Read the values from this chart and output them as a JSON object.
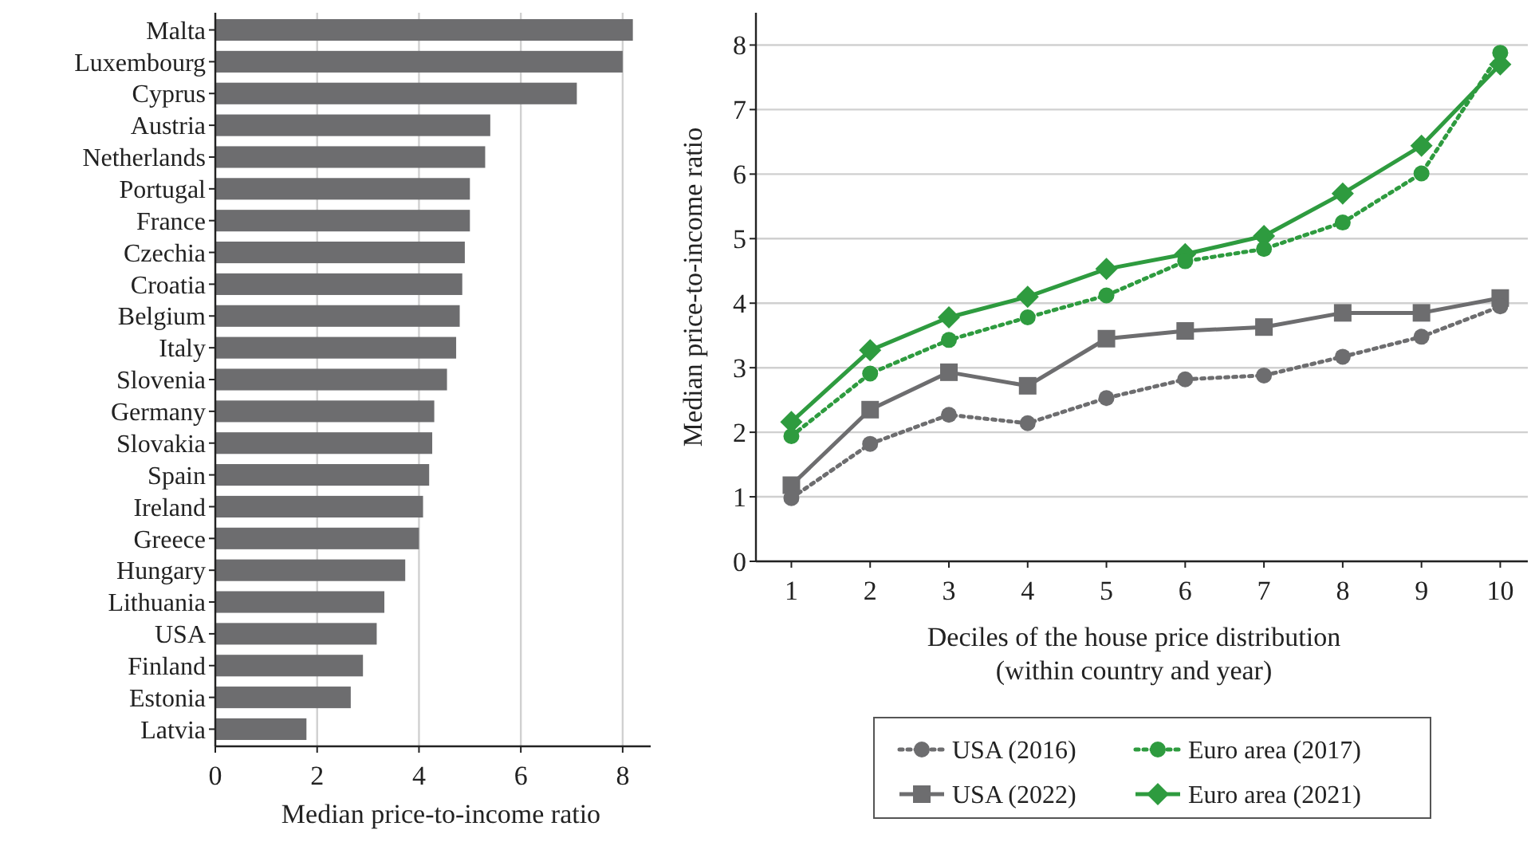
{
  "chart_data": [
    {
      "type": "bar",
      "orientation": "horizontal",
      "xlabel": "Median price-to-income ratio",
      "categories": [
        "Malta",
        "Luxembourg",
        "Cyprus",
        "Austria",
        "Netherlands",
        "Portugal",
        "France",
        "Czechia",
        "Croatia",
        "Belgium",
        "Italy",
        "Slovenia",
        "Germany",
        "Slovakia",
        "Spain",
        "Ireland",
        "Greece",
        "Hungary",
        "Lithuania",
        "USA",
        "Finland",
        "Estonia",
        "Latvia"
      ],
      "values": [
        8.2,
        8.0,
        7.1,
        5.4,
        5.3,
        5.0,
        5.0,
        4.9,
        4.85,
        4.8,
        4.73,
        4.55,
        4.3,
        4.26,
        4.2,
        4.08,
        4.0,
        3.73,
        3.32,
        3.17,
        2.9,
        2.66,
        1.79
      ],
      "color": "#6d6d6f",
      "xlim": [
        0,
        8.55
      ],
      "xticks": [
        0,
        2,
        4,
        6,
        8
      ],
      "grid": "x"
    },
    {
      "type": "line",
      "xlabel": "Deciles of the house price distribution\n(within country and year)",
      "ylabel": "Median price-to-income ratio",
      "x": [
        1,
        2,
        3,
        4,
        5,
        6,
        7,
        8,
        9,
        10
      ],
      "xlim": [
        0.55,
        10.35
      ],
      "xticks": [
        1,
        2,
        3,
        4,
        5,
        6,
        7,
        8,
        9,
        10
      ],
      "ylim": [
        0,
        8.5
      ],
      "yticks": [
        0,
        1,
        2,
        3,
        4,
        5,
        6,
        7,
        8
      ],
      "grid": "y",
      "legend": "bottom",
      "series": [
        {
          "name": "USA (2016)",
          "color": "#6d6d6f",
          "marker": "circle",
          "line_style": "dotted",
          "values": [
            0.98,
            1.82,
            2.27,
            2.14,
            2.53,
            2.82,
            2.88,
            3.17,
            3.48,
            3.95
          ]
        },
        {
          "name": "USA (2022)",
          "color": "#6d6d6f",
          "marker": "square",
          "line_style": "solid",
          "values": [
            1.18,
            2.35,
            2.93,
            2.72,
            3.45,
            3.57,
            3.63,
            3.85,
            3.85,
            4.08
          ]
        },
        {
          "name": "Euro area (2017)",
          "color": "#2e9b3f",
          "marker": "circle",
          "line_style": "dotted",
          "values": [
            1.94,
            2.91,
            3.43,
            3.78,
            4.12,
            4.65,
            4.84,
            5.25,
            6.01,
            7.88
          ]
        },
        {
          "name": "Euro area (2021)",
          "color": "#2e9b3f",
          "marker": "diamond",
          "line_style": "solid",
          "values": [
            2.16,
            3.27,
            3.78,
            4.1,
            4.53,
            4.76,
            5.04,
            5.7,
            6.44,
            7.7
          ]
        }
      ]
    }
  ]
}
